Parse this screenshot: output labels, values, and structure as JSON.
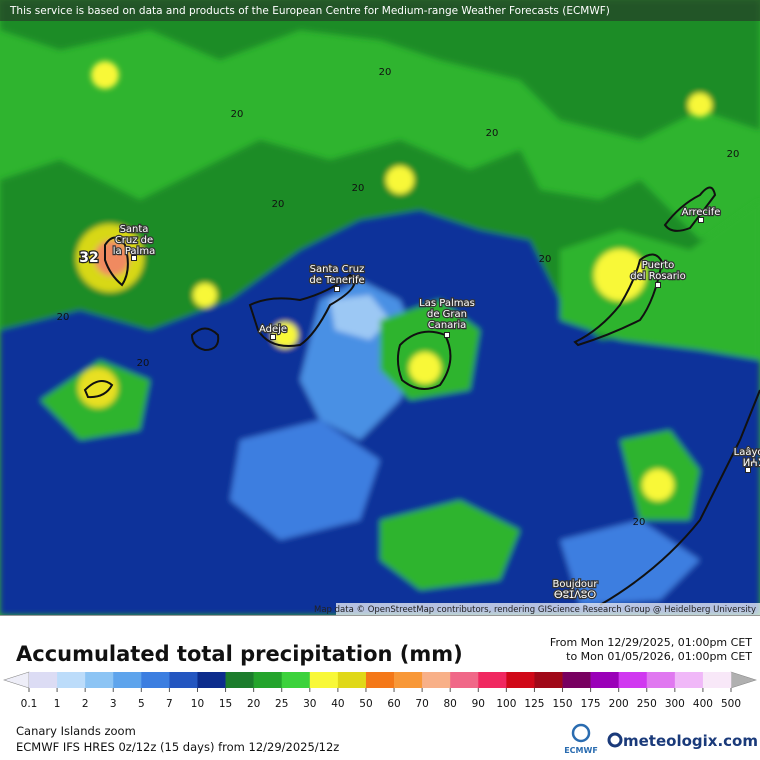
{
  "banner": "This service is based on data and products of the European Centre for Medium-range Weather Forecasts (ECMWF)",
  "places": [
    {
      "lines": [
        "Santa",
        "Cruz de",
        "la Palma"
      ]
    },
    {
      "lines": [
        "Santa Cruz",
        "de Tenerife"
      ]
    },
    {
      "lines": [
        "Adeje"
      ]
    },
    {
      "lines": [
        "Las Palmas",
        "de Gran",
        "Canaria"
      ]
    },
    {
      "lines": [
        "Puerto",
        "del Rosario"
      ]
    },
    {
      "lines": [
        "Arrecife"
      ]
    },
    {
      "lines": [
        "Laâyoune",
        "ⵍⵄⵢⵓⵏ"
      ]
    },
    {
      "lines": [
        "Boujdour",
        "ⴱⵓⵊⴷⵓⵔ"
      ]
    }
  ],
  "contour_labels": [
    "20",
    "20",
    "20",
    "20",
    "20",
    "20",
    "20",
    "20",
    "20",
    "20"
  ],
  "max_label": "32",
  "attribution": "Map data © OpenStreetMap contributors, rendering GIScience Research Group @ Heidelberg University",
  "title": "Accumulated total precipitation (mm)",
  "period": [
    "From Mon 12/29/2025, 01:00pm CET",
    "to Mon 01/05/2026, 01:00pm CET"
  ],
  "legend": {
    "ticks": [
      0.1,
      1,
      2,
      3,
      5,
      7,
      10,
      15,
      20,
      25,
      30,
      40,
      50,
      60,
      70,
      80,
      90,
      100,
      125,
      150,
      175,
      200,
      250,
      300,
      400,
      500
    ],
    "colors": [
      "#dcdcf4",
      "#bcdcfa",
      "#8cc4f4",
      "#5ea4ec",
      "#3c7ee0",
      "#2456c0",
      "#0c2c8c",
      "#1c7c2c",
      "#24a42c",
      "#3cd23c",
      "#f8f838",
      "#e0d818",
      "#f47818",
      "#f89838",
      "#f8b088",
      "#f06888",
      "#f02860",
      "#d00818",
      "#a00818",
      "#780060",
      "#9a00b8",
      "#d038f0",
      "#e078f0",
      "#f0b8f8",
      "#f8e8f8"
    ],
    "under_color": "#eeeef8",
    "over_color": "#b0b0b0"
  },
  "region": "Canary Islands zoom",
  "model": "ECMWF IFS HRES 0z/12z (15 days) from 12/29/2025/12z",
  "logos": {
    "ecmwf": "ECMWF",
    "meteologix": "meteologix.com"
  }
}
